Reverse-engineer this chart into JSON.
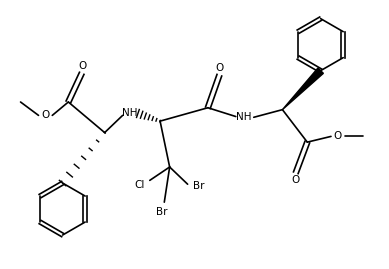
{
  "bg_color": "#ffffff",
  "line_color": "#000000",
  "lw": 1.2,
  "fs": 7.5,
  "figsize": [
    3.89,
    2.69
  ],
  "dpi": 100,
  "xlim": [
    0,
    10
  ],
  "ylim": [
    0,
    7
  ]
}
